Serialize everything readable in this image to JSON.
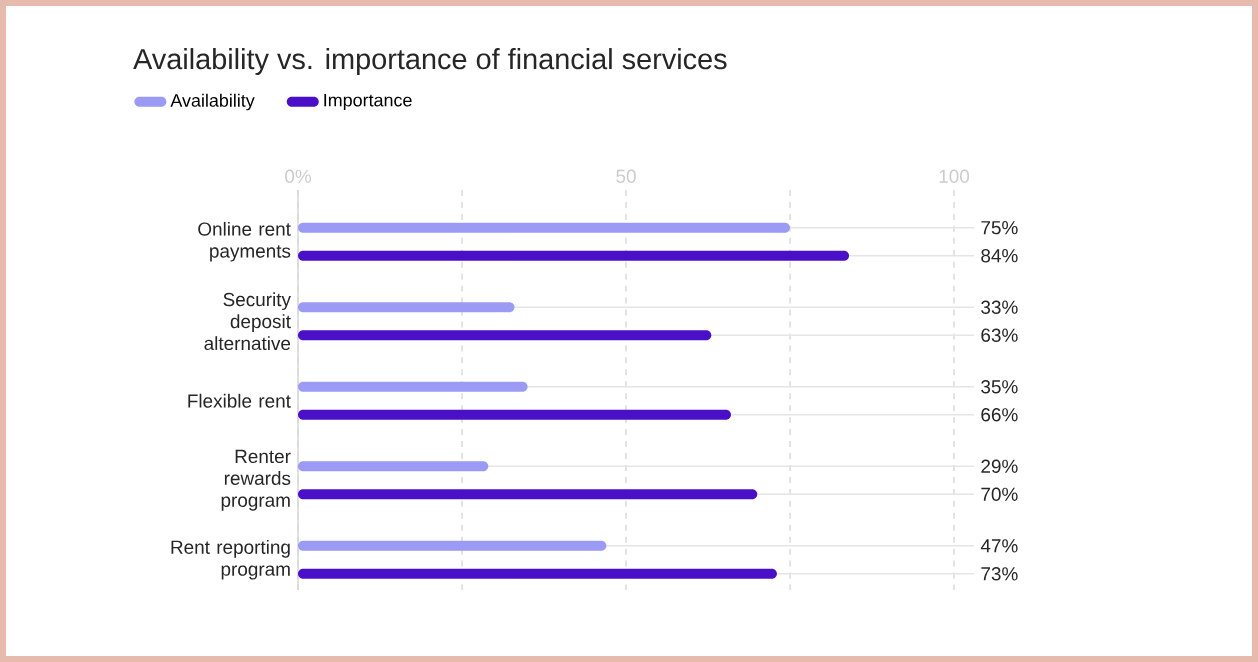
{
  "chart_data": {
    "type": "bar",
    "orientation": "horizontal",
    "title": "Availability vs. importance of financial services",
    "categories": [
      "Online rent payments",
      "Security deposit alternative",
      "Flexible rent",
      "Renter rewards program",
      "Rent reporting program"
    ],
    "series": [
      {
        "name": "Availability",
        "color": "#9b9bf5",
        "values": [
          75,
          33,
          35,
          29,
          47
        ],
        "value_labels": [
          "75%",
          "33%",
          "35%",
          "29%",
          "47%"
        ]
      },
      {
        "name": "Importance",
        "color": "#4a10c8",
        "values": [
          84,
          63,
          66,
          70,
          73
        ],
        "value_labels": [
          "84%",
          "63%",
          "66%",
          "70%",
          "73%"
        ]
      }
    ],
    "xlim": [
      0,
      100
    ],
    "xticks": [
      {
        "value": 0,
        "label": "0%"
      },
      {
        "value": 25,
        "label": null
      },
      50,
      {
        "value": 75,
        "label": null
      },
      100
    ],
    "grid": "x",
    "legend": "top left"
  }
}
